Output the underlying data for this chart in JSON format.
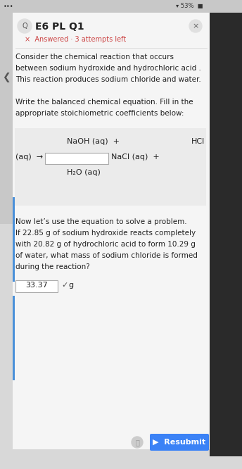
{
  "bg_color": "#d8d8d8",
  "card_color": "#f5f5f5",
  "white": "#ffffff",
  "title": "E6 PL Q1",
  "answered_text": "×  Answered · 3 attempts left",
  "close_x": "×",
  "body_lines": [
    "Consider the chemical reaction that occurs",
    "between sodium hydroxide and hydrochloric acid .",
    "This reaction produces sodium chloride and water.",
    "",
    "Write the balanced chemical equation. Fill in the",
    "appropriate stoichiometric coefficients below:"
  ],
  "eq_line1_left": "NaOH (aq)  +",
  "eq_line1_right": "HCl",
  "eq_line2_left": "(aq)  →",
  "eq_line2_mid": "NaCl (aq)  +",
  "eq_line3": "H₂O (aq)",
  "problem_lines": [
    "Now let’s use the equation to solve a problem.",
    "If 22.85 g of sodium hydroxide reacts completely",
    "with 20.82 g of hydrochloric acid to form 10.29 g",
    "of water, what mass of sodium chloride is formed",
    "during the reaction?"
  ],
  "answer_value": "33.37",
  "answer_unit": "g",
  "resubmit_color": "#3b82f6",
  "answered_color": "#cc4444",
  "text_color": "#222222",
  "input_border": "#aaaaaa",
  "sidebar_color": "#b0b0b0",
  "eq_box_color": "#f0f0f0",
  "status_bar_bg": "#cccccc"
}
